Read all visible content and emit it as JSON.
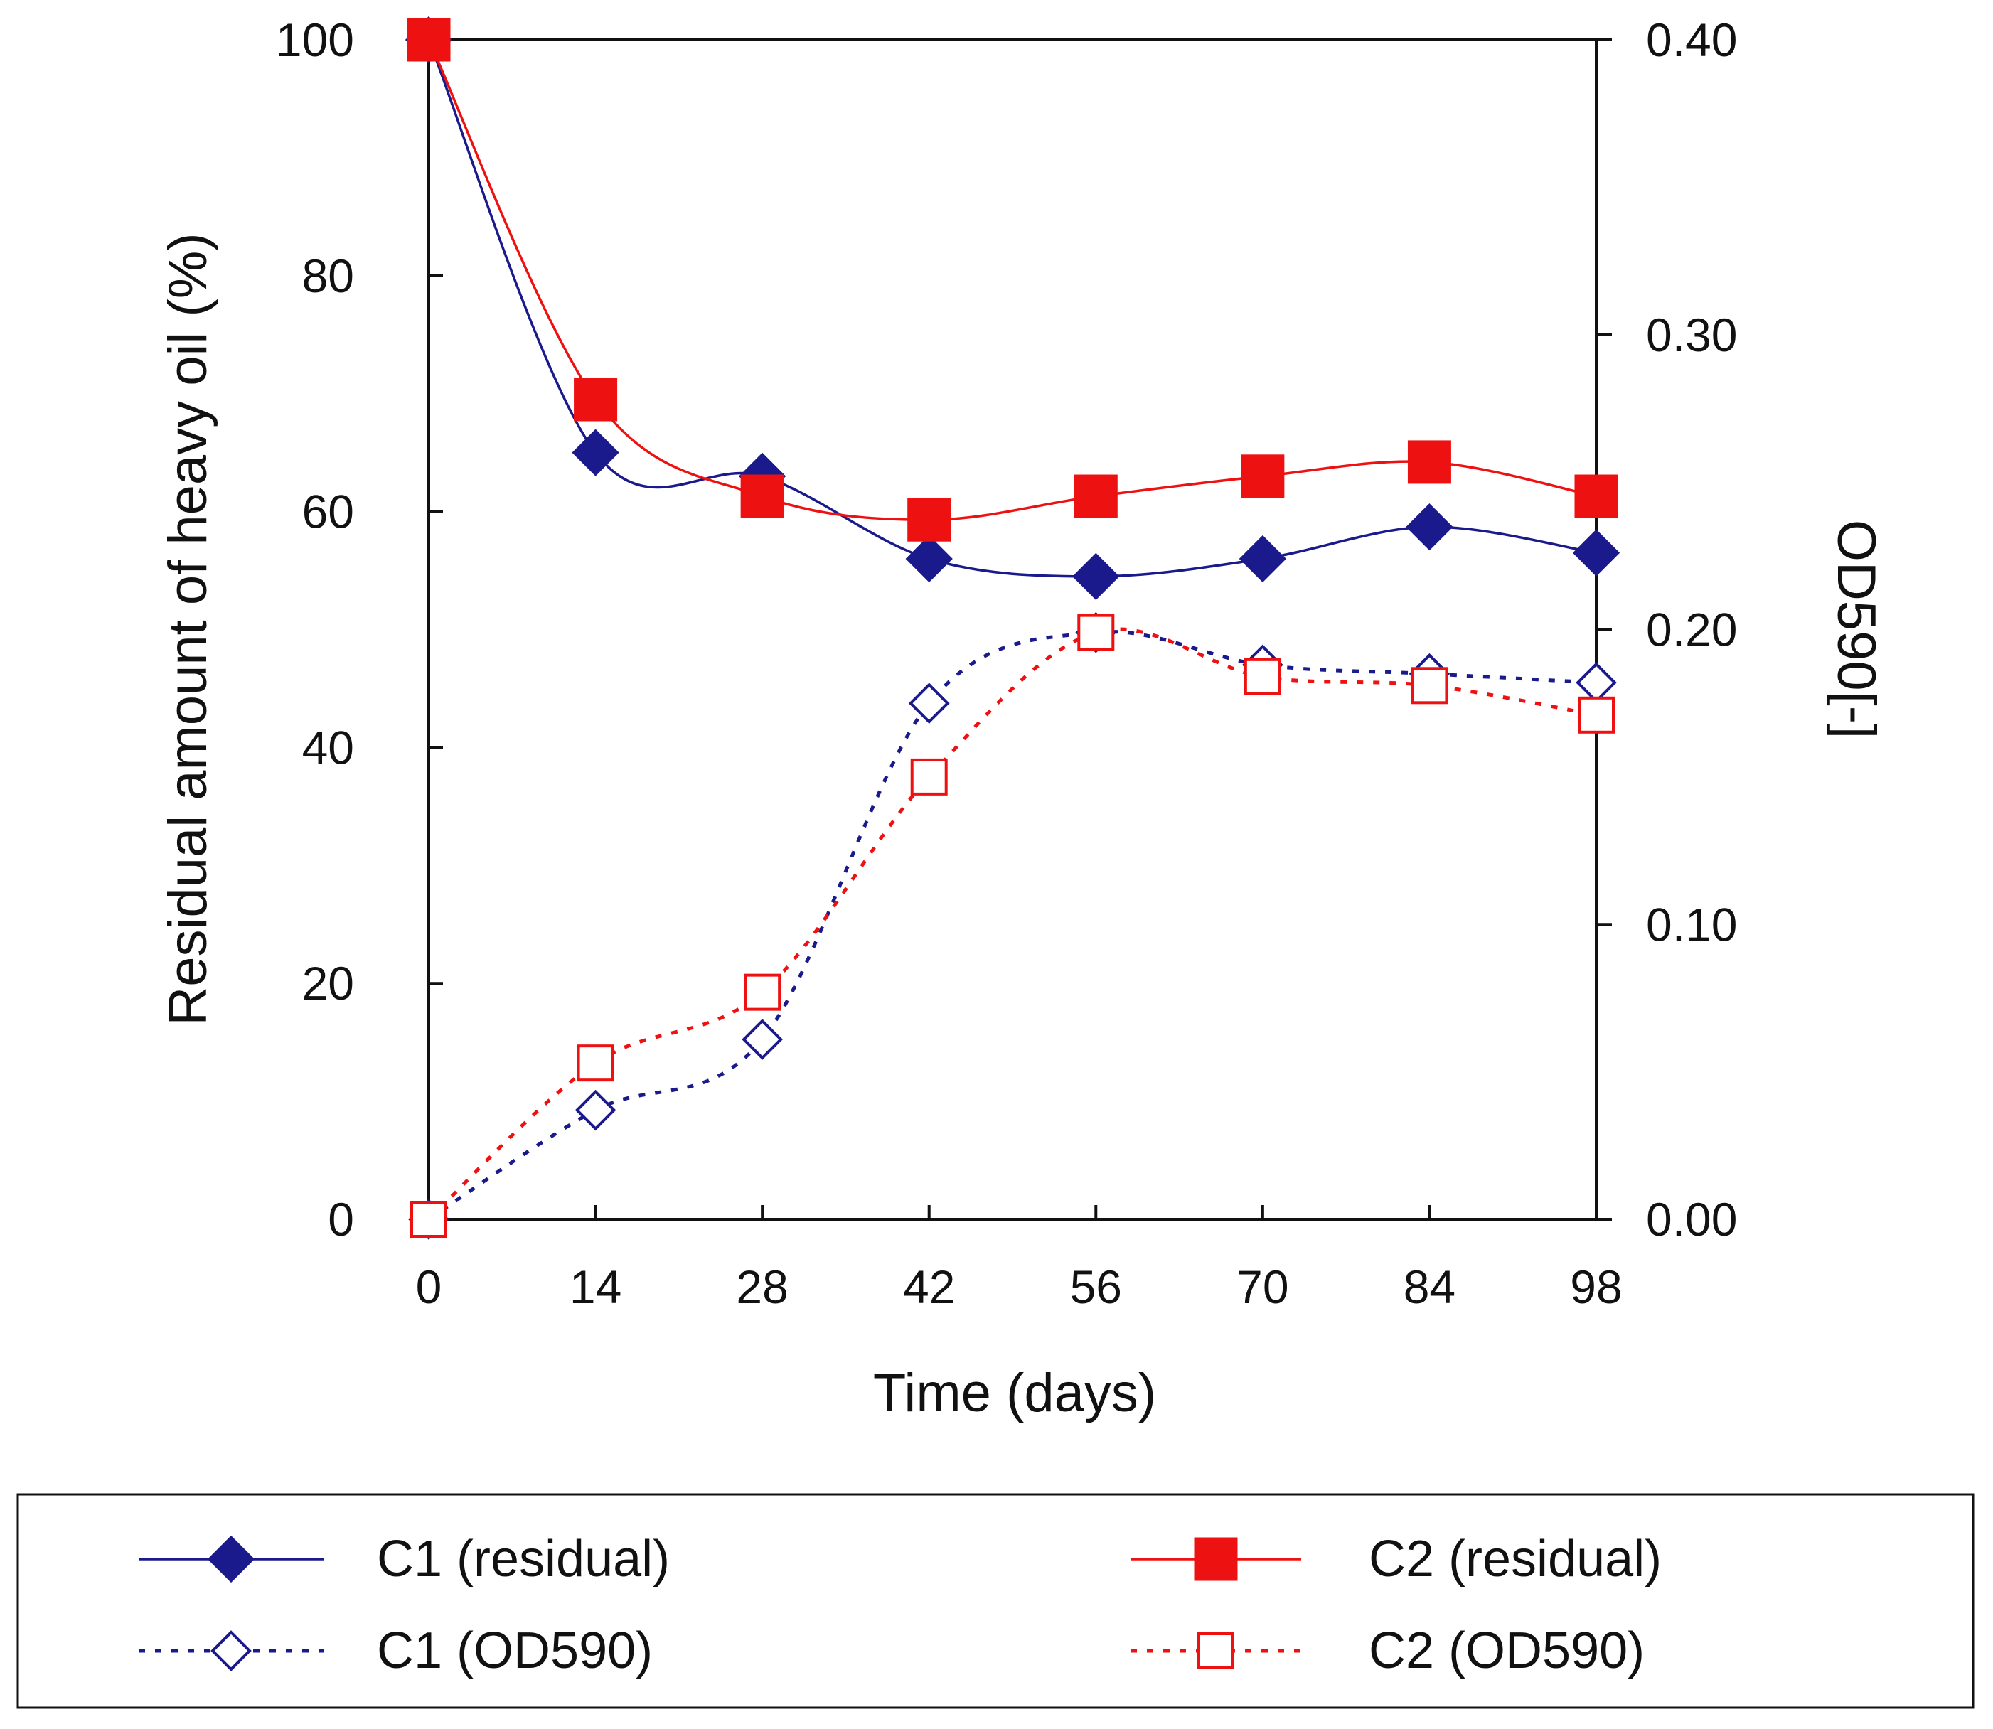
{
  "chart_data": {
    "type": "line",
    "title": "",
    "xlabel": "Time (days)",
    "ylabel": "Residual amount of heavy oil (%)",
    "y2label": "OD590[-]",
    "x": [
      0,
      14,
      28,
      42,
      56,
      70,
      84,
      98
    ],
    "x_tick_labels": [
      "0",
      "14",
      "28",
      "42",
      "56",
      "70",
      "84",
      "98"
    ],
    "xlim": [
      0,
      98
    ],
    "ylim": [
      0,
      100
    ],
    "y_ticks": [
      0,
      20,
      40,
      60,
      80,
      100
    ],
    "y_tick_labels": [
      "0",
      "20",
      "40",
      "60",
      "80",
      "100"
    ],
    "y2lim": [
      0,
      0.4
    ],
    "y2_ticks": [
      0,
      0.1,
      0.2,
      0.3,
      0.4
    ],
    "y2_tick_labels": [
      "0.00",
      "0.10",
      "0.20",
      "0.30",
      "0.40"
    ],
    "grid": false,
    "legend_position": "bottom",
    "series": [
      {
        "name": "C1 (residual)",
        "axis": "left",
        "color": "#1a1a8c",
        "marker": "diamond-filled",
        "dash": "solid",
        "values": [
          100,
          65,
          63,
          56,
          54.5,
          56,
          58.7,
          56.5
        ]
      },
      {
        "name": "C2 (residual)",
        "axis": "left",
        "color": "#ee1111",
        "marker": "square-filled",
        "dash": "solid",
        "values": [
          100,
          69.5,
          61.3,
          59.3,
          61.3,
          63,
          64.2,
          61.3
        ]
      },
      {
        "name": "C1 (OD590)",
        "axis": "right",
        "color": "#1a1a8c",
        "marker": "diamond-open",
        "dash": "dotted",
        "values": [
          0,
          0.037,
          0.061,
          0.175,
          0.199,
          0.188,
          0.185,
          0.182
        ]
      },
      {
        "name": "C2 (OD590)",
        "axis": "right",
        "color": "#ee1111",
        "marker": "square-open",
        "dash": "dotted",
        "values": [
          0,
          0.053,
          0.077,
          0.15,
          0.199,
          0.184,
          0.181,
          0.171
        ]
      }
    ]
  }
}
